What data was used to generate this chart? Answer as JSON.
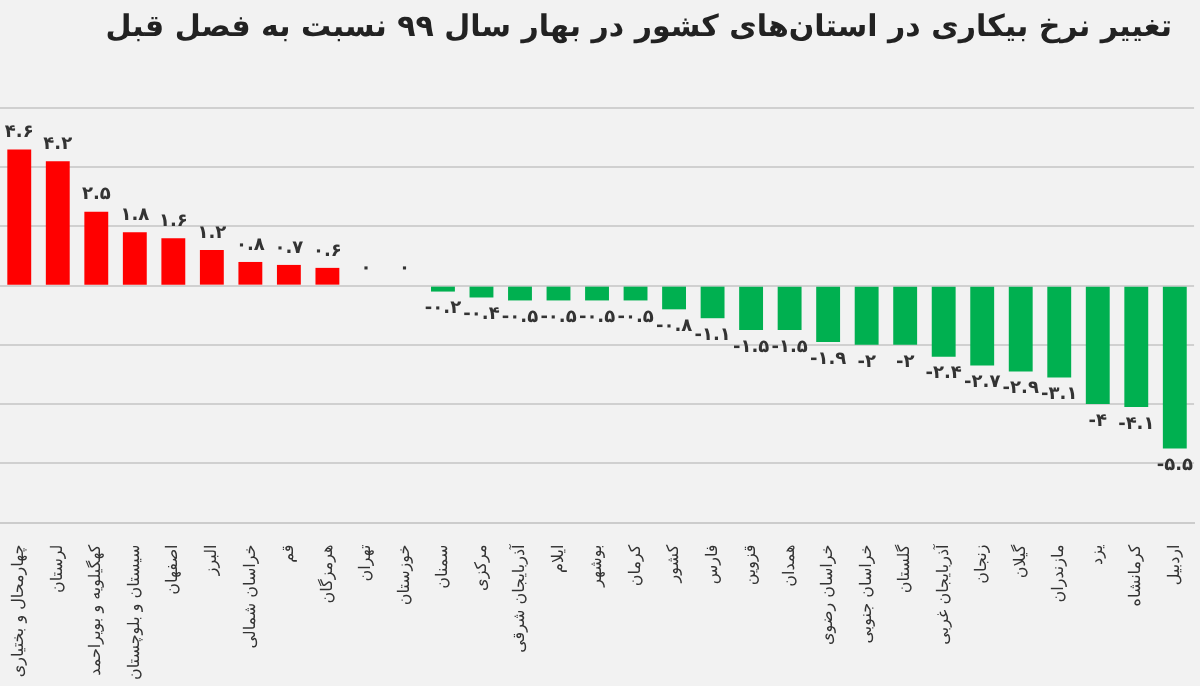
{
  "chart_data": {
    "type": "bar",
    "title": "تغییر نرخ بیکاری در استان‌های کشور در بهار سال ۹۹ نسبت به فصل قبل",
    "categories": [
      "چهارمحال و بختیاری",
      "لرستان",
      "کهگیلویه و بویراحمد",
      "سیستان و بلوچستان",
      "اصفهان",
      "البرز",
      "خراسان شمالی",
      "قم",
      "هرمزگان",
      "تهران",
      "خوزستان",
      "سمنان",
      "مرکزی",
      "آذربایجان شرقی",
      "ایلام",
      "بوشهر",
      "کرمان",
      "کشور",
      "فارس",
      "قزوین",
      "همدان",
      "خراسان رضوی",
      "خراسان جنوبی",
      "گلستان",
      "آذربایجان غربی",
      "زنجان",
      "گیلان",
      "مازندران",
      "یزد",
      "کرمانشاه",
      "اردبیل"
    ],
    "values": [
      4.6,
      4.2,
      2.5,
      1.8,
      1.6,
      1.2,
      0.8,
      0.7,
      0.6,
      0,
      0,
      -0.2,
      -0.4,
      -0.5,
      -0.5,
      -0.5,
      -0.5,
      -0.8,
      -1.1,
      -1.5,
      -1.5,
      -1.9,
      -2,
      -2,
      -2.4,
      -2.7,
      -2.9,
      -3.1,
      -4,
      -4.1,
      -5.5
    ],
    "value_labels": [
      "۴.۶",
      "۴.۲",
      "۲.۵",
      "۱.۸",
      "۱.۶",
      "۱.۲",
      "۰.۸",
      "۰.۷",
      "۰.۶",
      "۰",
      "۰",
      "-۰.۲",
      "-۰.۴",
      "-۰.۵",
      "-۰.۵",
      "-۰.۵",
      "-۰.۵",
      "-۰.۸",
      "-۱.۱",
      "-۱.۵",
      "-۱.۵",
      "-۱.۹",
      "-۲",
      "-۲",
      "-۲.۴",
      "-۲.۷",
      "-۲.۹",
      "-۳.۱",
      "-۴",
      "-۴.۱",
      "-۵.۵"
    ],
    "colors": [
      "#ff0000",
      "#ff0000",
      "#ff0000",
      "#ff0000",
      "#ff0000",
      "#ff0000",
      "#ff0000",
      "#ff0000",
      "#ff0000",
      "#ff0000",
      "#ff0000",
      "#00b050",
      "#00b050",
      "#00b050",
      "#00b050",
      "#00b050",
      "#00b050",
      "#00b050",
      "#00b050",
      "#00b050",
      "#00b050",
      "#00b050",
      "#00b050",
      "#00b050",
      "#00b050",
      "#00b050",
      "#00b050",
      "#00b050",
      "#00b050",
      "#00b050",
      "#00b050"
    ],
    "ylim": [
      -8,
      6
    ],
    "grid": "y",
    "tick_labels": "x",
    "legend": false
  }
}
